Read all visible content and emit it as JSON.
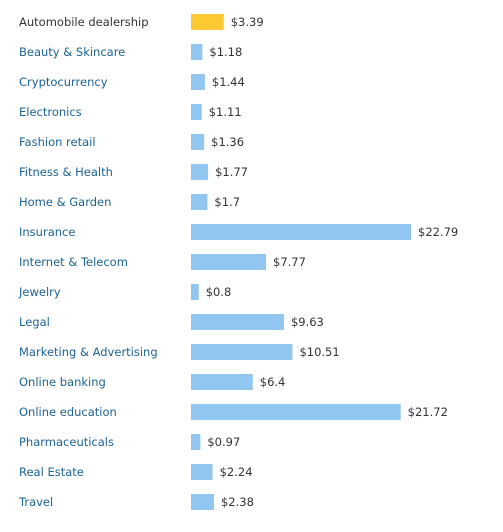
{
  "chart_data": {
    "type": "bar",
    "orientation": "horizontal",
    "title": "",
    "xlabel": "",
    "ylabel": "",
    "value_prefix": "$",
    "xlim": [
      0,
      22.79
    ],
    "grid": false,
    "legend": "none",
    "categories": [
      "Automobile dealership",
      "Beauty & Skincare",
      "Cryptocurrency",
      "Electronics",
      "Fashion retail",
      "Fitness & Health",
      "Home & Garden",
      "Insurance",
      "Internet & Telecom",
      "Jewelry",
      "Legal",
      "Marketing & Advertising",
      "Online banking",
      "Online education",
      "Pharmaceuticals",
      "Real Estate",
      "Travel"
    ],
    "values": [
      3.39,
      1.18,
      1.44,
      1.11,
      1.36,
      1.77,
      1.7,
      22.79,
      7.77,
      0.8,
      9.63,
      10.51,
      6.4,
      21.72,
      0.97,
      2.24,
      2.38
    ],
    "value_labels": [
      "$3.39",
      "$1.18",
      "$1.44",
      "$1.11",
      "$1.36",
      "$1.77",
      "$1.7",
      "$22.79",
      "$7.77",
      "$0.8",
      "$9.63",
      "$10.51",
      "$6.4",
      "$21.72",
      "$0.97",
      "$2.24",
      "$2.38"
    ],
    "highlight_index": 0
  },
  "colors": {
    "highlight_bar": "#FDC932",
    "bar": "#91C6F0",
    "highlight_label": "#333333",
    "label": "#1E6396",
    "value_label": "#333333"
  }
}
